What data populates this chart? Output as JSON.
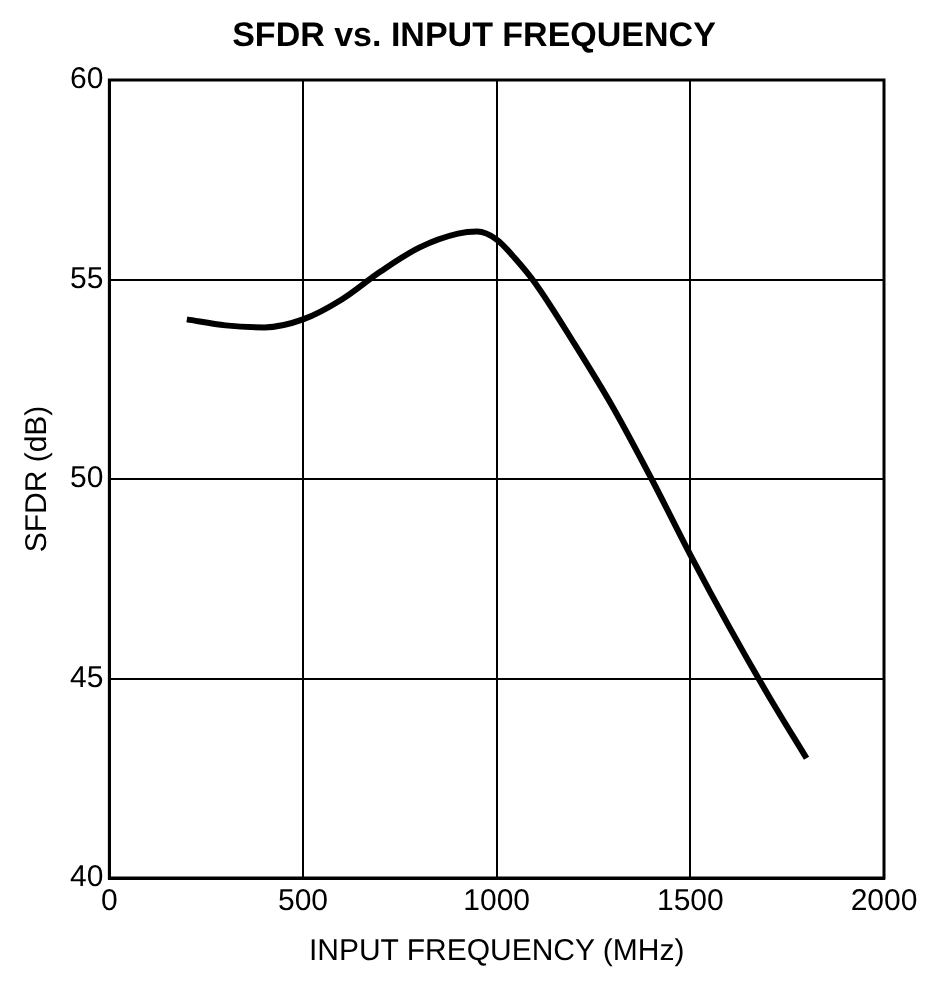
{
  "chart_data": {
    "type": "line",
    "title": "SFDR vs. INPUT FREQUENCY",
    "xlabel": "INPUT FREQUENCY (MHz)",
    "ylabel": "SFDR (dB)",
    "x": [
      200,
      300,
      400,
      500,
      600,
      700,
      800,
      900,
      950,
      1000,
      1050,
      1100,
      1200,
      1300,
      1400,
      1500,
      1600,
      1700,
      1800
    ],
    "series": [
      {
        "color": "#000000",
        "values": [
          54.0,
          53.85,
          53.8,
          54.0,
          54.5,
          55.2,
          55.8,
          56.15,
          56.2,
          56.0,
          55.5,
          54.9,
          53.4,
          51.8,
          50.0,
          48.1,
          46.3,
          44.6,
          43.0
        ]
      }
    ],
    "xlim": [
      0,
      2000
    ],
    "xticks": [
      0,
      500,
      1000,
      1500,
      2000
    ],
    "ylim": [
      40,
      60
    ],
    "yticks": [
      40,
      45,
      50,
      55,
      60
    ],
    "grid": true,
    "legend": false,
    "marker": "none",
    "line_style": "solid"
  }
}
